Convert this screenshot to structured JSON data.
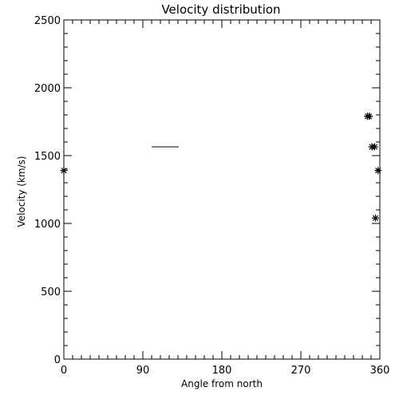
{
  "chart_data": {
    "type": "scatter",
    "title": "Velocity distribution",
    "xlabel": "Angle from north",
    "ylabel": "Velocity (km/s)",
    "xlim": [
      0,
      360
    ],
    "ylim": [
      0,
      2500
    ],
    "x_ticks": [
      0,
      90,
      180,
      270,
      360
    ],
    "x_tick_labels": [
      "0",
      "90",
      "180",
      "270",
      "360"
    ],
    "x_minor_step": 10,
    "y_ticks": [
      0,
      500,
      1000,
      1500,
      2000,
      2500
    ],
    "y_tick_labels": [
      "0",
      "500",
      "1000",
      "1500",
      "2000",
      "2500"
    ],
    "y_minor_step": 100,
    "grid": false,
    "legend": "none",
    "marker": "asterisk",
    "color": "#000000",
    "points": [
      {
        "x": 0,
        "y": 1390
      },
      {
        "x": 346,
        "y": 1790
      },
      {
        "x": 348,
        "y": 1790
      },
      {
        "x": 351,
        "y": 1565
      },
      {
        "x": 354,
        "y": 1565
      },
      {
        "x": 358,
        "y": 1390
      },
      {
        "x": 355,
        "y": 1040
      }
    ],
    "segments": [
      {
        "x1": 100,
        "x2": 131,
        "y": 1565
      }
    ]
  }
}
